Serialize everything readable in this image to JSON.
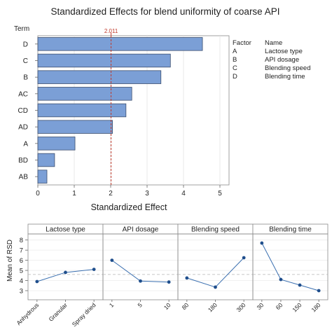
{
  "figure": {
    "pareto": {
      "title": "Standardized Effects for blend uniformity of coarse API",
      "term_label": "Term",
      "reference_label": "2.011",
      "legend": {
        "factor_header": "Factor",
        "name_header": "Name",
        "rows": [
          {
            "factor": "A",
            "name": "Lactose type"
          },
          {
            "factor": "B",
            "name": "API dosage"
          },
          {
            "factor": "C",
            "name": "Blending speed"
          },
          {
            "factor": "D",
            "name": "Blending time"
          }
        ]
      }
    },
    "main_effects": {
      "ylabel": "Mean of RSD"
    }
  },
  "chart_data": [
    {
      "type": "bar",
      "orientation": "horizontal",
      "title": "Standardized Effects for blend uniformity of coarse API",
      "xlabel": "Standardized Effect",
      "ylabel": "Term",
      "categories": [
        "D",
        "C",
        "B",
        "AC",
        "CD",
        "AD",
        "A",
        "BD",
        "AB"
      ],
      "values": [
        4.52,
        3.64,
        3.38,
        2.58,
        2.42,
        2.05,
        1.02,
        0.46,
        0.25
      ],
      "xlim": [
        0,
        5.25
      ],
      "xticks": [
        "0",
        "1",
        "2",
        "3",
        "4",
        "5"
      ],
      "reference_line": 2.011,
      "bar_color": "#7b9fd6",
      "bar_edge_color": "#3d4f6e",
      "reference_color": "#c0392b",
      "grid": true
    },
    {
      "type": "line",
      "title": "",
      "ylabel": "Mean of RSD",
      "ylim": [
        2.1,
        8.6
      ],
      "yticks": [
        "3",
        "4",
        "5",
        "6",
        "7",
        "8"
      ],
      "grand_mean": 4.6,
      "line_color": "#3a6fb0",
      "point_color": "#1f4e8c",
      "grid": true,
      "panels": [
        {
          "name": "Lactose type",
          "x": [
            "Anhydrous",
            "Granular",
            "Spray dried"
          ],
          "values": [
            3.9,
            4.8,
            5.1
          ]
        },
        {
          "name": "API dosage",
          "x": [
            "1",
            "5",
            "10"
          ],
          "values": [
            6.0,
            3.95,
            3.85
          ]
        },
        {
          "name": "Blending speed",
          "x": [
            "80",
            "180",
            "300"
          ],
          "values": [
            4.25,
            3.35,
            6.25
          ]
        },
        {
          "name": "Blending time",
          "x": [
            "30",
            "60",
            "150",
            "180"
          ],
          "values": [
            7.7,
            4.1,
            3.55,
            3.0
          ]
        }
      ]
    }
  ]
}
